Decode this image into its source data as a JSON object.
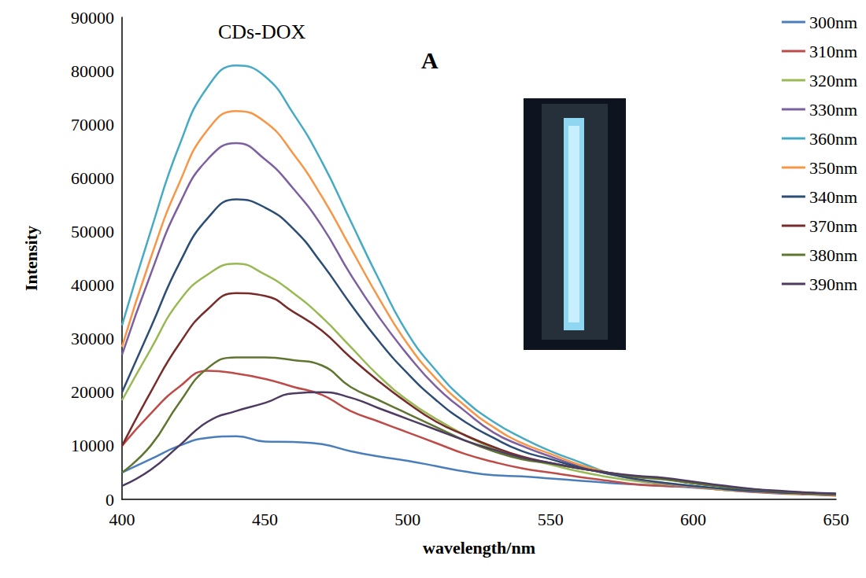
{
  "chart_data": {
    "type": "line",
    "title": "CDs-DOX",
    "annotations": [
      {
        "text": "A"
      }
    ],
    "x_label": "wavelength/nm",
    "y_label": "Intensity",
    "x": [
      400,
      410,
      420,
      430,
      440,
      450,
      460,
      470,
      480,
      490,
      500,
      510,
      520,
      530,
      540,
      550,
      560,
      570,
      580,
      590,
      600,
      610,
      620,
      630,
      640,
      650
    ],
    "xlim": [
      400,
      650
    ],
    "xticks": [
      400,
      450,
      500,
      550,
      600,
      650
    ],
    "ylim": [
      0,
      90000
    ],
    "yticks": [
      0,
      10000,
      20000,
      30000,
      40000,
      50000,
      60000,
      70000,
      80000,
      90000
    ],
    "grid": false,
    "legend": "upper right",
    "series": [
      {
        "name": "300nm",
        "color": "#4a7ebb",
        "values": [
          5000,
          7500,
          10000,
          11500,
          11800,
          10800,
          10700,
          10300,
          9000,
          8000,
          7200,
          6200,
          5200,
          4500,
          4300,
          3900,
          3500,
          3100,
          2800,
          2500,
          2200,
          1800,
          1500,
          1200,
          1000,
          800
        ]
      },
      {
        "name": "310nm",
        "color": "#be4b48",
        "values": [
          10000,
          16000,
          21000,
          24000,
          23500,
          22500,
          21000,
          19500,
          16500,
          14500,
          12500,
          10500,
          8500,
          7000,
          5800,
          5000,
          4200,
          3500,
          2800,
          2500,
          2300,
          1800,
          1400,
          1100,
          900,
          700
        ]
      },
      {
        "name": "320nm",
        "color": "#98b954",
        "values": [
          18500,
          28000,
          37000,
          42000,
          44000,
          42000,
          38500,
          34000,
          28500,
          23000,
          18500,
          15000,
          12000,
          9500,
          7800,
          6500,
          5200,
          4200,
          3400,
          2800,
          2300,
          1800,
          1500,
          1200,
          1000,
          800
        ]
      },
      {
        "name": "330nm",
        "color": "#7d60a0",
        "values": [
          27000,
          42000,
          55000,
          63500,
          66500,
          63500,
          58000,
          51000,
          42000,
          34000,
          27000,
          21000,
          16500,
          12500,
          10000,
          8000,
          6200,
          4800,
          3700,
          2900,
          2300,
          1900,
          1500,
          1300,
          1100,
          900
        ]
      },
      {
        "name": "360nm",
        "color": "#46aac5",
        "values": [
          32500,
          50000,
          66000,
          77000,
          81000,
          79000,
          72000,
          63000,
          52000,
          41000,
          31000,
          24000,
          18500,
          14500,
          11500,
          9000,
          7000,
          5000,
          3800,
          3000,
          2500,
          2000,
          1700,
          1400,
          1200,
          1000
        ]
      },
      {
        "name": "350nm",
        "color": "#f79646",
        "values": [
          28500,
          45000,
          59000,
          69000,
          72500,
          70500,
          64500,
          56500,
          47000,
          37500,
          29000,
          22500,
          17500,
          13500,
          10500,
          8500,
          6500,
          5000,
          3800,
          3000,
          2400,
          1900,
          1600,
          1300,
          1100,
          900
        ]
      },
      {
        "name": "340nm",
        "color": "#2c4d75",
        "values": [
          20000,
          32000,
          44000,
          52500,
          56000,
          54500,
          50500,
          44000,
          36500,
          29500,
          23500,
          18500,
          14500,
          11500,
          9000,
          7500,
          6000,
          4800,
          3800,
          3100,
          2500,
          2000,
          1600,
          1300,
          1100,
          900
        ]
      },
      {
        "name": "370nm",
        "color": "#772c2a",
        "values": [
          10000,
          20000,
          29000,
          35500,
          38500,
          38000,
          35000,
          31500,
          26500,
          22000,
          18000,
          14500,
          12000,
          9800,
          8000,
          6800,
          5800,
          5000,
          4200,
          3800,
          3000,
          2400,
          1900,
          1500,
          1200,
          1000
        ]
      },
      {
        "name": "380nm",
        "color": "#5f7530",
        "values": [
          5000,
          10000,
          18000,
          24500,
          26500,
          26500,
          26000,
          25000,
          21000,
          18500,
          16000,
          13500,
          11000,
          9000,
          7500,
          6700,
          5800,
          5000,
          4200,
          3700,
          3000,
          2400,
          1900,
          1500,
          1200,
          1000
        ]
      },
      {
        "name": "390nm",
        "color": "#4d3b62",
        "values": [
          2500,
          5500,
          10000,
          14500,
          16500,
          18000,
          19800,
          20000,
          19000,
          17000,
          15000,
          13000,
          11000,
          9300,
          7800,
          6800,
          5800,
          5000,
          4400,
          4000,
          3300,
          2600,
          2000,
          1600,
          1300,
          1100
        ]
      }
    ]
  }
}
